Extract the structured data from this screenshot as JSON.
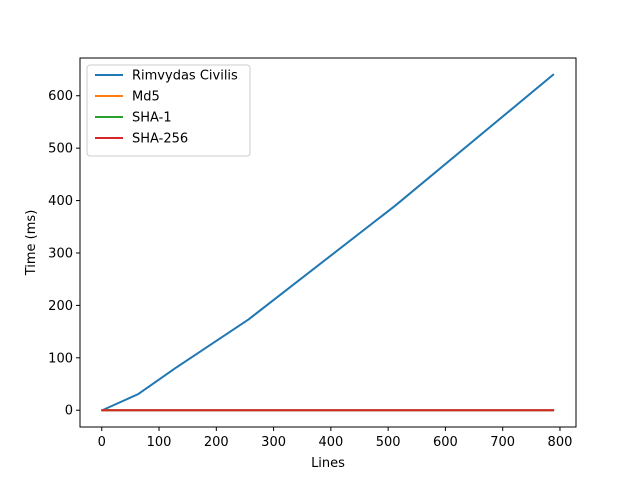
{
  "chart_data": {
    "type": "line",
    "title": "",
    "xlabel": "Lines",
    "ylabel": "Time (ms)",
    "xlim": [
      -38,
      828
    ],
    "ylim": [
      -32,
      672
    ],
    "xticks": [
      0,
      100,
      200,
      300,
      400,
      500,
      600,
      700,
      800
    ],
    "yticks": [
      0,
      100,
      200,
      300,
      400,
      500,
      600
    ],
    "grid": false,
    "legend_position": "top-left",
    "series": [
      {
        "name": "Rimvydas Civilis",
        "color": "#1f77b4",
        "x": [
          1,
          64,
          128,
          256,
          512,
          788
        ],
        "y": [
          0,
          31,
          80,
          173,
          390,
          640
        ]
      },
      {
        "name": "Md5",
        "color": "#ff7f0e",
        "x": [
          1,
          788
        ],
        "y": [
          0,
          0
        ]
      },
      {
        "name": "SHA-1",
        "color": "#2ca02c",
        "x": [
          1,
          788
        ],
        "y": [
          0,
          0
        ]
      },
      {
        "name": "SHA-256",
        "color": "#d62728",
        "x": [
          1,
          788
        ],
        "y": [
          0,
          0
        ]
      }
    ]
  }
}
